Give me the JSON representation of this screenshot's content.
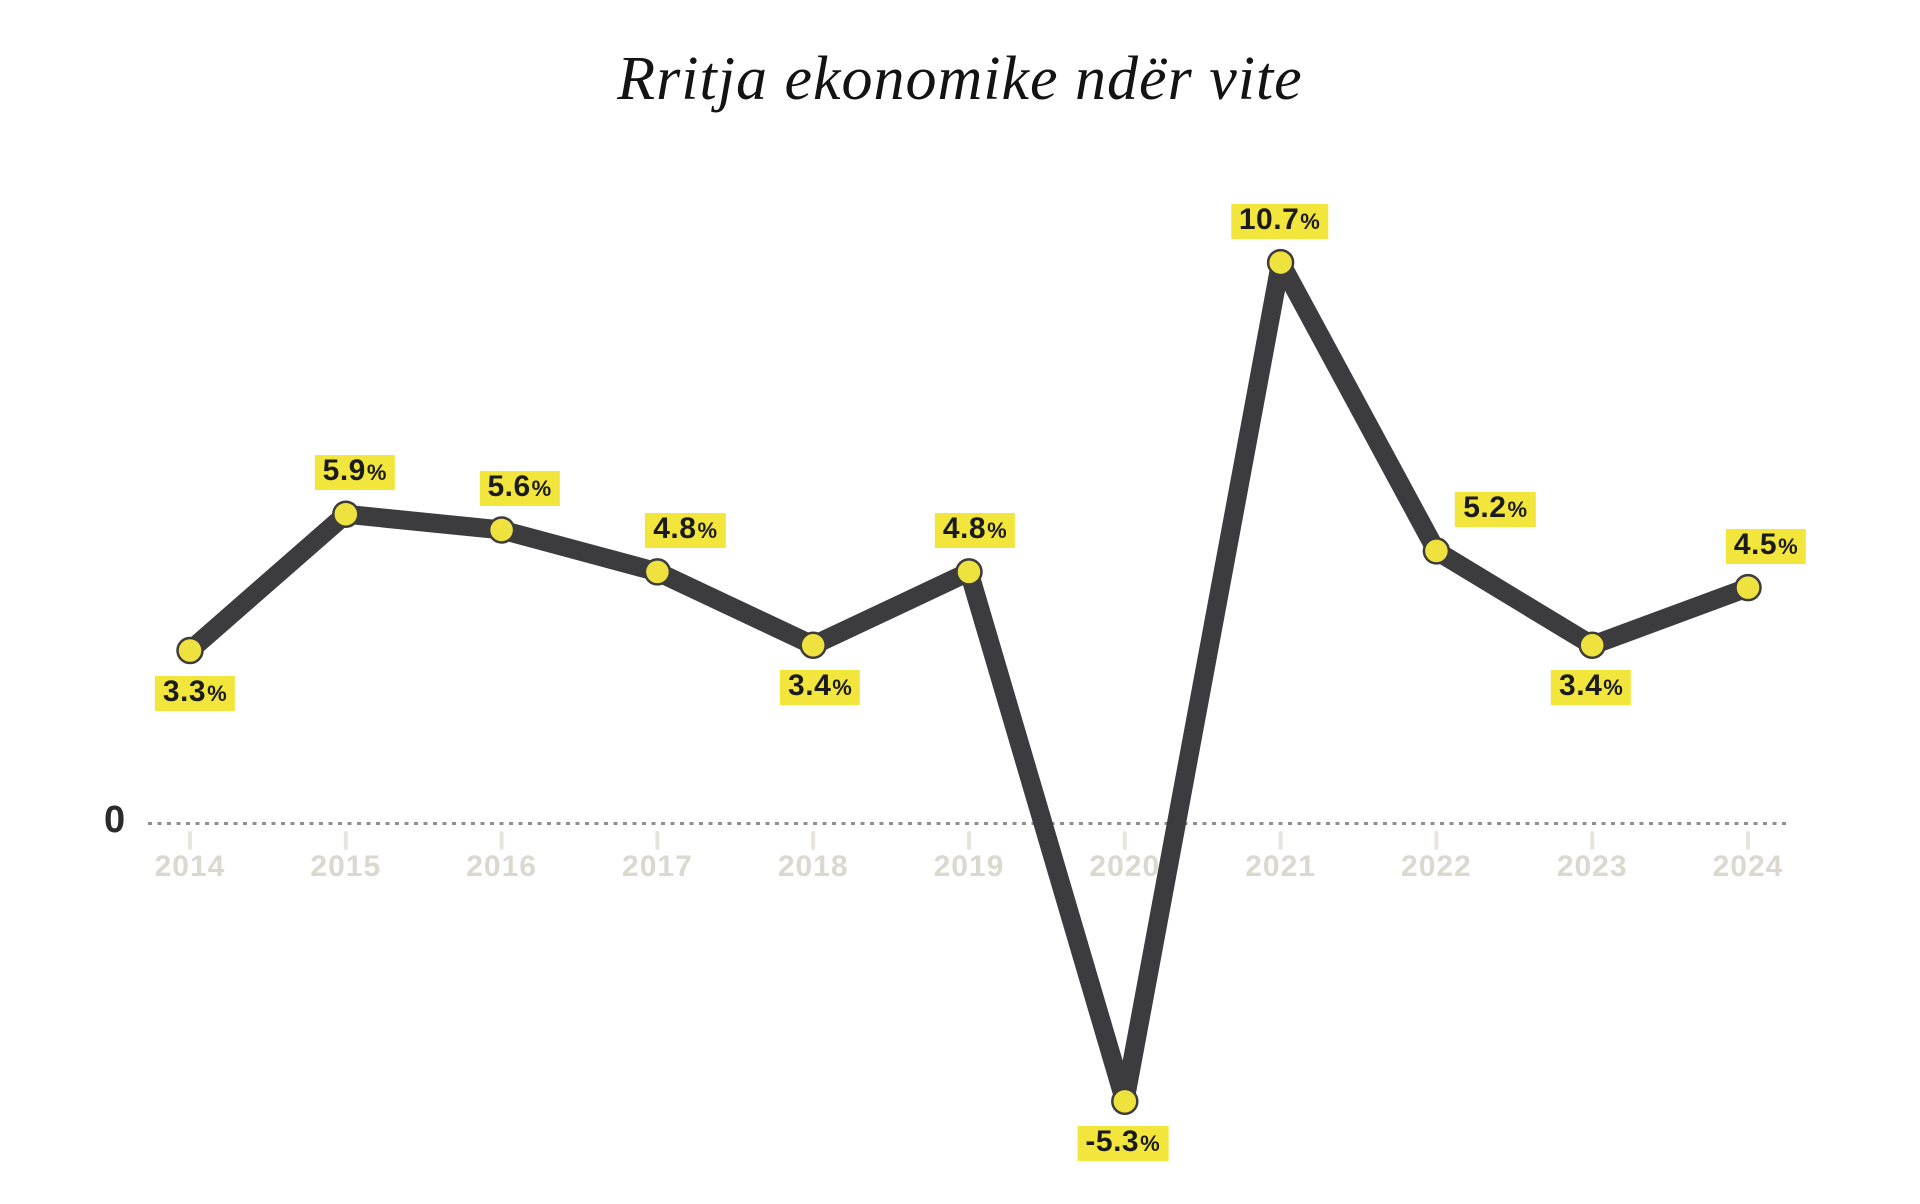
{
  "title": {
    "text": "Rritja ekonomike ndër vite"
  },
  "axis": {
    "zero_label": "0"
  },
  "chart_data": {
    "type": "line",
    "title": "Rritja ekonomike ndër vite",
    "xlabel": "",
    "ylabel": "",
    "categories": [
      "2014",
      "2015",
      "2016",
      "2017",
      "2018",
      "2019",
      "2020",
      "2021",
      "2022",
      "2023",
      "2024"
    ],
    "values": [
      3.3,
      5.9,
      5.6,
      4.8,
      3.4,
      4.8,
      -5.3,
      10.7,
      5.2,
      3.4,
      4.5
    ],
    "point_labels": [
      "3.3%",
      "5.9%",
      "5.6%",
      "4.8%",
      "3.4%",
      "4.8%",
      "-5.3%",
      "10.7%",
      "5.2%",
      "3.4%",
      "4.5%"
    ],
    "ylim": [
      -7,
      12
    ],
    "grid": false,
    "zero_baseline": true,
    "legend": "none",
    "layout_hints": {
      "label_positions": [
        "below",
        "above",
        "above",
        "above",
        "below",
        "above",
        "below",
        "above",
        "above",
        "below",
        "above"
      ],
      "label_dx": [
        5,
        9,
        18,
        28,
        7,
        6,
        -2,
        -1,
        59,
        -1,
        18
      ]
    }
  },
  "colors": {
    "line": "#3c3c3f",
    "dot_fill": "#f0e23e",
    "dot_outline": "#3c3c3f",
    "chip_bg": "#f2e63c",
    "chip_text": "#1b1b1d",
    "year_text": "#dbd8d0",
    "tick": "#e6e4dd",
    "zero_line": "#8f8f8f",
    "zero_label_text": "#2b2b2e",
    "title_text": "#131313",
    "background": "#ffffff"
  }
}
